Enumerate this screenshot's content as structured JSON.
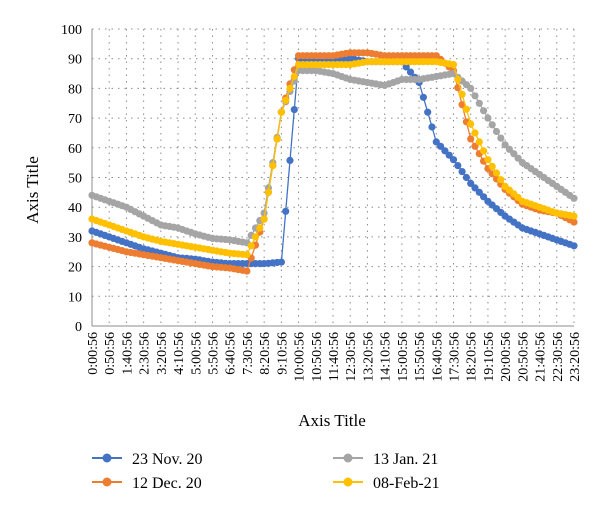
{
  "chart_data": {
    "type": "line",
    "title": "",
    "xlabel": "Axis Title",
    "ylabel": "Axis Title",
    "ylim": [
      0,
      100
    ],
    "yticks": [
      0,
      10,
      20,
      30,
      40,
      50,
      60,
      70,
      80,
      90,
      100
    ],
    "grid": "dotted",
    "legend_position": "bottom",
    "x_tick_labels": [
      "0:00:56",
      "0:50:56",
      "1:40:56",
      "2:30:56",
      "3:20:56",
      "4:10:56",
      "5:00:56",
      "5:50:56",
      "6:40:56",
      "7:30:56",
      "8:20:56",
      "9:10:56",
      "10:00:56",
      "10:50:56",
      "11:40:56",
      "12:30:56",
      "13:20:56",
      "14:10:56",
      "15:00:56",
      "15:50:56",
      "16:40:56",
      "17:30:56",
      "18:20:56",
      "19:10:56",
      "20:00:56",
      "20:50:56",
      "21:40:56",
      "22:30:56",
      "23:20:56"
    ],
    "series": [
      {
        "name": "23 Nov. 20",
        "color": "#4472C4",
        "values": [
          32,
          30,
          28,
          26,
          24.5,
          23,
          22.5,
          21.5,
          21,
          21,
          21,
          21.5,
          90,
          89,
          89,
          90,
          89,
          89,
          89,
          82,
          62,
          56,
          48,
          42,
          37,
          33,
          31,
          29,
          27
        ]
      },
      {
        "name": "12 Dec. 20",
        "color": "#ED7D31",
        "values": [
          28,
          26.5,
          25,
          24,
          23,
          22,
          21,
          20,
          19.5,
          18.5,
          36,
          72,
          91,
          91,
          91,
          92,
          92,
          91,
          91,
          91,
          91,
          86,
          63,
          53,
          46,
          41,
          39,
          38,
          35
        ]
      },
      {
        "name": "13 Jan. 21",
        "color": "#A5A5A5",
        "values": [
          44,
          42,
          40,
          37,
          34,
          33,
          31,
          29.5,
          29,
          28,
          38,
          72,
          86,
          86,
          85,
          83,
          82,
          81,
          83,
          83,
          84,
          85,
          80,
          70,
          61,
          55,
          51,
          47,
          43
        ]
      },
      {
        "name": "08-Feb-21",
        "color": "#FFC000",
        "values": [
          36,
          34,
          32,
          30,
          28.5,
          27.5,
          26.5,
          25.5,
          24.5,
          24,
          36,
          72,
          88,
          88,
          88,
          88,
          89,
          89,
          89,
          89,
          89,
          88,
          68,
          56,
          47,
          42,
          40,
          38,
          37
        ]
      }
    ]
  }
}
